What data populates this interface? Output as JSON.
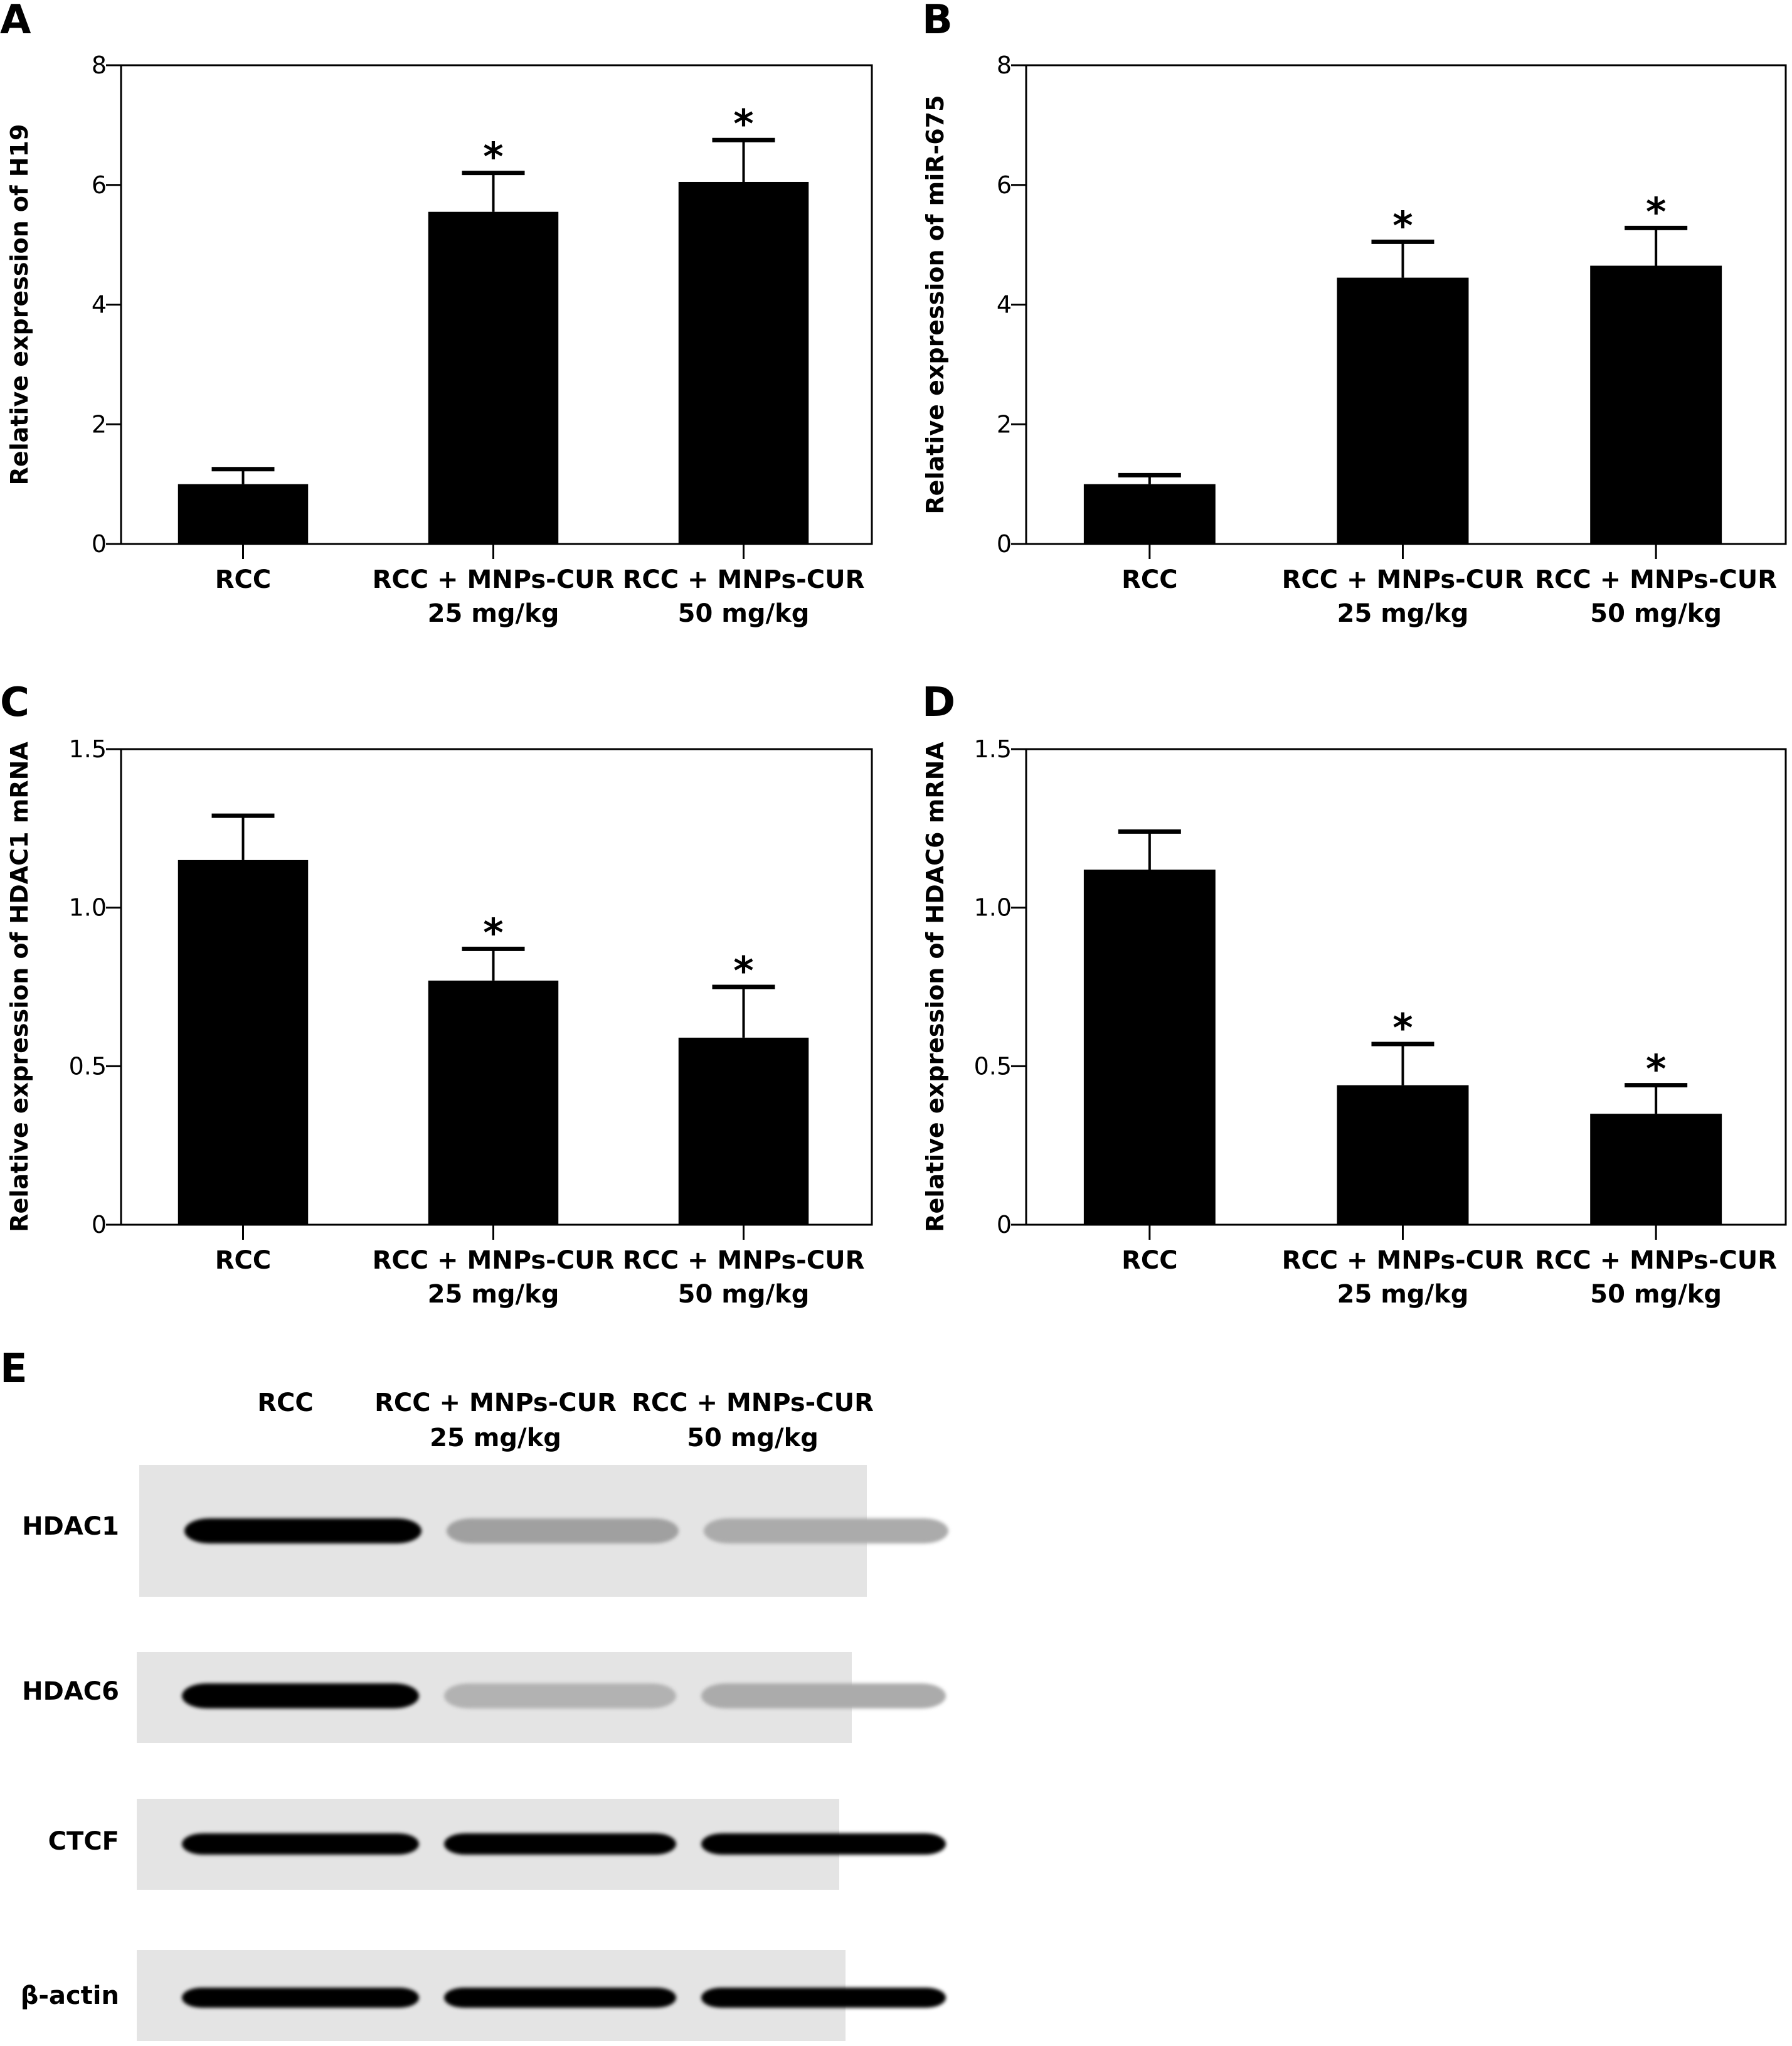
{
  "figure": {
    "panels": [
      "A",
      "B",
      "C",
      "D",
      "E"
    ]
  },
  "chart_data": [
    {
      "id": "A",
      "type": "bar",
      "title": "",
      "xlabel": "",
      "ylabel": "Relative expression of H19",
      "categories": [
        "RCC",
        "RCC + MNPs-CUR\n25 mg/kg",
        "RCC + MNPs-CUR\n50 mg/kg"
      ],
      "category_lines": [
        [
          "RCC"
        ],
        [
          "RCC + MNPs-CUR",
          "25 mg/kg"
        ],
        [
          "RCC + MNPs-CUR",
          "50 mg/kg"
        ]
      ],
      "values": [
        1.0,
        5.55,
        6.05
      ],
      "error_upper": [
        1.25,
        6.2,
        6.75
      ],
      "significance": [
        "",
        "*",
        "*"
      ],
      "ylim": [
        0,
        8
      ],
      "yticks": [
        0,
        2,
        4,
        6,
        8
      ],
      "ytick_labels": [
        "0",
        "2",
        "4",
        "6",
        "8"
      ],
      "grid": false,
      "bar_color": "#000000"
    },
    {
      "id": "B",
      "type": "bar",
      "title": "",
      "xlabel": "",
      "ylabel": "Relative expression of miR-675",
      "categories": [
        "RCC",
        "RCC + MNPs-CUR\n25 mg/kg",
        "RCC + MNPs-CUR\n50 mg/kg"
      ],
      "category_lines": [
        [
          "RCC"
        ],
        [
          "RCC + MNPs-CUR",
          "25 mg/kg"
        ],
        [
          "RCC + MNPs-CUR",
          "50 mg/kg"
        ]
      ],
      "values": [
        1.0,
        4.45,
        4.65
      ],
      "error_upper": [
        1.15,
        5.05,
        5.28
      ],
      "significance": [
        "",
        "*",
        "*"
      ],
      "ylim": [
        0,
        8
      ],
      "yticks": [
        0,
        2,
        4,
        6,
        8
      ],
      "ytick_labels": [
        "0",
        "2",
        "4",
        "6",
        "8"
      ],
      "grid": false,
      "bar_color": "#000000"
    },
    {
      "id": "C",
      "type": "bar",
      "title": "",
      "xlabel": "",
      "ylabel": "Relative expression of HDAC1 mRNA",
      "categories": [
        "RCC",
        "RCC + MNPs-CUR\n25 mg/kg",
        "RCC + MNPs-CUR\n50 mg/kg"
      ],
      "category_lines": [
        [
          "RCC"
        ],
        [
          "RCC + MNPs-CUR",
          "25 mg/kg"
        ],
        [
          "RCC + MNPs-CUR",
          "50 mg/kg"
        ]
      ],
      "values": [
        1.15,
        0.77,
        0.59
      ],
      "error_upper": [
        1.29,
        0.87,
        0.75
      ],
      "significance": [
        "",
        "*",
        "*"
      ],
      "ylim": [
        0,
        1.5
      ],
      "yticks": [
        0,
        0.5,
        1.0,
        1.5
      ],
      "ytick_labels": [
        "0",
        "0.5",
        "1.0",
        "1.5"
      ],
      "grid": false,
      "bar_color": "#000000"
    },
    {
      "id": "D",
      "type": "bar",
      "title": "",
      "xlabel": "",
      "ylabel": "Relative expression of HDAC6 mRNA",
      "categories": [
        "RCC",
        "RCC + MNPs-CUR\n25 mg/kg",
        "RCC + MNPs-CUR\n50 mg/kg"
      ],
      "category_lines": [
        [
          "RCC"
        ],
        [
          "RCC + MNPs-CUR",
          "25 mg/kg"
        ],
        [
          "RCC + MNPs-CUR",
          "50 mg/kg"
        ]
      ],
      "values": [
        1.12,
        0.44,
        0.35
      ],
      "error_upper": [
        1.24,
        0.57,
        0.44
      ],
      "significance": [
        "",
        "*",
        "*"
      ],
      "ylim": [
        0,
        1.5
      ],
      "yticks": [
        0,
        0.5,
        1.0,
        1.5
      ],
      "ytick_labels": [
        "0",
        "0.5",
        "1.0",
        "1.5"
      ],
      "grid": false,
      "bar_color": "#000000"
    }
  ],
  "western_blot": {
    "panel": "E",
    "lanes": [
      {
        "line1": "RCC",
        "line2": ""
      },
      {
        "line1": "RCC + MNPs-CUR",
        "line2": "25 mg/kg"
      },
      {
        "line1": "RCC + MNPs-CUR",
        "line2": "50 mg/kg"
      }
    ],
    "rows": [
      {
        "label": "HDAC1",
        "band_intensity": [
          1.0,
          0.3,
          0.25
        ]
      },
      {
        "label": "HDAC6",
        "band_intensity": [
          1.0,
          0.22,
          0.25
        ]
      },
      {
        "label": "CTCF",
        "band_intensity": [
          1.0,
          1.0,
          1.0
        ]
      },
      {
        "label": "β-actin",
        "band_intensity": [
          1.0,
          1.0,
          1.0
        ]
      }
    ],
    "background_color": "#e4e4e4",
    "band_color": "#000000"
  }
}
